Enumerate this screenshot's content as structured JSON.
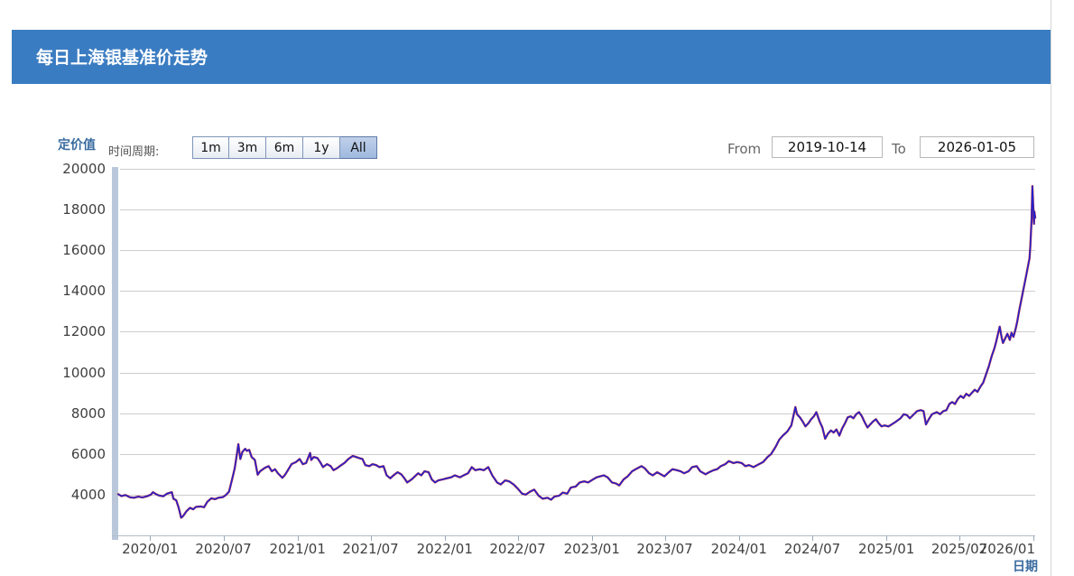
{
  "header": {
    "title": "每日上海银基准价走势"
  },
  "controls": {
    "period_label": "时间周期:",
    "periods": [
      "1m",
      "3m",
      "6m",
      "1y",
      "All"
    ],
    "selected_period": "All",
    "from_label": "From",
    "from_value": "2019-10-14",
    "to_label": "To",
    "to_value": "2026-01-05"
  },
  "colors": {
    "header_bg": "#3a7cc2",
    "accent_text": "#3a6b9f",
    "button_selected_bg": "#9fb9de",
    "grid": "#cdcdcd",
    "axis_bar": "#bac7da",
    "axis_line": "#b3bdc9",
    "tick_mark": "#9aaabb"
  },
  "chart_data": {
    "type": "line",
    "title": "每日上海银基准价走势",
    "xlabel": "日期",
    "ylabel": "定价值",
    "ylim": [
      2000,
      20000
    ],
    "yticks": [
      4000,
      6000,
      8000,
      10000,
      12000,
      14000,
      16000,
      18000,
      20000
    ],
    "x_range": [
      "2019-10-14",
      "2026-01-05"
    ],
    "xticks": [
      [
        "2020-01-01",
        "2020/01"
      ],
      [
        "2020-07-01",
        "2020/07"
      ],
      [
        "2021-01-01",
        "2021/01"
      ],
      [
        "2021-07-01",
        "2021/07"
      ],
      [
        "2022-01-01",
        "2022/01"
      ],
      [
        "2022-07-01",
        "2022/07"
      ],
      [
        "2023-01-01",
        "2023/01"
      ],
      [
        "2023-07-01",
        "2023/07"
      ],
      [
        "2024-01-01",
        "2024/01"
      ],
      [
        "2024-07-01",
        "2024/07"
      ],
      [
        "2025-01-01",
        "2025/01"
      ],
      [
        "2025-07-01",
        "2025/07"
      ],
      [
        "2026-01-01",
        "2026/01"
      ]
    ],
    "grid": true,
    "legend": "none",
    "lines": [
      {
        "name": "benchmark-price-outline",
        "color": "#d03030",
        "width": 2.4
      },
      {
        "name": "benchmark-price",
        "color": "#2323cc",
        "width": 1.6
      }
    ],
    "points": [
      [
        "2019-10-14",
        4020
      ],
      [
        "2019-10-22",
        3930
      ],
      [
        "2019-11-01",
        3980
      ],
      [
        "2019-11-12",
        3870
      ],
      [
        "2019-11-22",
        3850
      ],
      [
        "2019-12-03",
        3900
      ],
      [
        "2019-12-13",
        3860
      ],
      [
        "2019-12-24",
        3920
      ],
      [
        "2020-01-03",
        4000
      ],
      [
        "2020-01-08",
        4120
      ],
      [
        "2020-01-16",
        4020
      ],
      [
        "2020-01-23",
        3960
      ],
      [
        "2020-02-03",
        3920
      ],
      [
        "2020-02-12",
        4050
      ],
      [
        "2020-02-24",
        4120
      ],
      [
        "2020-02-28",
        3800
      ],
      [
        "2020-03-06",
        3720
      ],
      [
        "2020-03-12",
        3350
      ],
      [
        "2020-03-18",
        2870
      ],
      [
        "2020-03-23",
        2950
      ],
      [
        "2020-03-31",
        3180
      ],
      [
        "2020-04-09",
        3350
      ],
      [
        "2020-04-17",
        3280
      ],
      [
        "2020-04-24",
        3400
      ],
      [
        "2020-05-06",
        3420
      ],
      [
        "2020-05-14",
        3380
      ],
      [
        "2020-05-22",
        3650
      ],
      [
        "2020-06-01",
        3820
      ],
      [
        "2020-06-10",
        3780
      ],
      [
        "2020-06-19",
        3850
      ],
      [
        "2020-06-30",
        3880
      ],
      [
        "2020-07-08",
        4000
      ],
      [
        "2020-07-15",
        4150
      ],
      [
        "2020-07-22",
        4700
      ],
      [
        "2020-07-29",
        5300
      ],
      [
        "2020-08-05",
        6200
      ],
      [
        "2020-08-07",
        6480
      ],
      [
        "2020-08-12",
        5750
      ],
      [
        "2020-08-17",
        6100
      ],
      [
        "2020-08-24",
        6250
      ],
      [
        "2020-08-28",
        6150
      ],
      [
        "2020-09-03",
        6200
      ],
      [
        "2020-09-09",
        5850
      ],
      [
        "2020-09-17",
        5700
      ],
      [
        "2020-09-24",
        4980
      ],
      [
        "2020-09-30",
        5150
      ],
      [
        "2020-10-12",
        5320
      ],
      [
        "2020-10-21",
        5400
      ],
      [
        "2020-10-29",
        5150
      ],
      [
        "2020-11-06",
        5250
      ],
      [
        "2020-11-13",
        5050
      ],
      [
        "2020-11-24",
        4830
      ],
      [
        "2020-11-30",
        4950
      ],
      [
        "2020-12-08",
        5200
      ],
      [
        "2020-12-17",
        5500
      ],
      [
        "2020-12-28",
        5600
      ],
      [
        "2021-01-06",
        5750
      ],
      [
        "2021-01-14",
        5500
      ],
      [
        "2021-01-22",
        5550
      ],
      [
        "2021-02-01",
        6050
      ],
      [
        "2021-02-04",
        5700
      ],
      [
        "2021-02-10",
        5850
      ],
      [
        "2021-02-19",
        5800
      ],
      [
        "2021-02-26",
        5600
      ],
      [
        "2021-03-05",
        5350
      ],
      [
        "2021-03-15",
        5500
      ],
      [
        "2021-03-24",
        5400
      ],
      [
        "2021-03-31",
        5200
      ],
      [
        "2021-04-09",
        5300
      ],
      [
        "2021-04-19",
        5450
      ],
      [
        "2021-04-27",
        5550
      ],
      [
        "2021-05-07",
        5750
      ],
      [
        "2021-05-18",
        5900
      ],
      [
        "2021-05-26",
        5850
      ],
      [
        "2021-06-02",
        5800
      ],
      [
        "2021-06-11",
        5750
      ],
      [
        "2021-06-18",
        5450
      ],
      [
        "2021-06-28",
        5400
      ],
      [
        "2021-07-06",
        5500
      ],
      [
        "2021-07-15",
        5450
      ],
      [
        "2021-07-23",
        5350
      ],
      [
        "2021-08-02",
        5400
      ],
      [
        "2021-08-10",
        4950
      ],
      [
        "2021-08-19",
        4800
      ],
      [
        "2021-08-27",
        4950
      ],
      [
        "2021-09-06",
        5100
      ],
      [
        "2021-09-15",
        5000
      ],
      [
        "2021-09-23",
        4800
      ],
      [
        "2021-09-30",
        4600
      ],
      [
        "2021-10-11",
        4750
      ],
      [
        "2021-10-19",
        4900
      ],
      [
        "2021-10-27",
        5050
      ],
      [
        "2021-11-04",
        4950
      ],
      [
        "2021-11-12",
        5150
      ],
      [
        "2021-11-22",
        5100
      ],
      [
        "2021-11-30",
        4750
      ],
      [
        "2021-12-08",
        4600
      ],
      [
        "2021-12-16",
        4700
      ],
      [
        "2021-12-27",
        4750
      ],
      [
        "2022-01-06",
        4800
      ],
      [
        "2022-01-17",
        4850
      ],
      [
        "2022-01-26",
        4950
      ],
      [
        "2022-02-08",
        4850
      ],
      [
        "2022-02-17",
        4950
      ],
      [
        "2022-02-28",
        5050
      ],
      [
        "2022-03-09",
        5350
      ],
      [
        "2022-03-18",
        5200
      ],
      [
        "2022-03-29",
        5250
      ],
      [
        "2022-04-08",
        5200
      ],
      [
        "2022-04-19",
        5350
      ],
      [
        "2022-04-29",
        4950
      ],
      [
        "2022-05-11",
        4600
      ],
      [
        "2022-05-20",
        4500
      ],
      [
        "2022-05-31",
        4700
      ],
      [
        "2022-06-10",
        4650
      ],
      [
        "2022-06-21",
        4500
      ],
      [
        "2022-07-01",
        4300
      ],
      [
        "2022-07-12",
        4050
      ],
      [
        "2022-07-21",
        4000
      ],
      [
        "2022-08-01",
        4150
      ],
      [
        "2022-08-11",
        4250
      ],
      [
        "2022-08-22",
        3950
      ],
      [
        "2022-09-01",
        3800
      ],
      [
        "2022-09-13",
        3850
      ],
      [
        "2022-09-22",
        3750
      ],
      [
        "2022-09-30",
        3900
      ],
      [
        "2022-10-12",
        3950
      ],
      [
        "2022-10-21",
        4100
      ],
      [
        "2022-11-01",
        4050
      ],
      [
        "2022-11-10",
        4350
      ],
      [
        "2022-11-22",
        4400
      ],
      [
        "2022-12-02",
        4600
      ],
      [
        "2022-12-13",
        4650
      ],
      [
        "2022-12-23",
        4600
      ],
      [
        "2023-01-04",
        4750
      ],
      [
        "2023-01-13",
        4850
      ],
      [
        "2023-01-31",
        4950
      ],
      [
        "2023-02-09",
        4850
      ],
      [
        "2023-02-20",
        4600
      ],
      [
        "2023-03-02",
        4550
      ],
      [
        "2023-03-10",
        4450
      ],
      [
        "2023-03-21",
        4750
      ],
      [
        "2023-03-31",
        4900
      ],
      [
        "2023-04-11",
        5150
      ],
      [
        "2023-04-20",
        5250
      ],
      [
        "2023-05-04",
        5400
      ],
      [
        "2023-05-12",
        5300
      ],
      [
        "2023-05-23",
        5050
      ],
      [
        "2023-06-01",
        4950
      ],
      [
        "2023-06-12",
        5100
      ],
      [
        "2023-06-21",
        5000
      ],
      [
        "2023-06-30",
        4900
      ],
      [
        "2023-07-11",
        5100
      ],
      [
        "2023-07-20",
        5250
      ],
      [
        "2023-07-31",
        5200
      ],
      [
        "2023-08-09",
        5150
      ],
      [
        "2023-08-18",
        5050
      ],
      [
        "2023-08-29",
        5150
      ],
      [
        "2023-09-07",
        5350
      ],
      [
        "2023-09-18",
        5400
      ],
      [
        "2023-09-27",
        5150
      ],
      [
        "2023-10-10",
        5000
      ],
      [
        "2023-10-19",
        5100
      ],
      [
        "2023-10-30",
        5200
      ],
      [
        "2023-11-08",
        5250
      ],
      [
        "2023-11-17",
        5400
      ],
      [
        "2023-11-28",
        5500
      ],
      [
        "2023-12-07",
        5650
      ],
      [
        "2023-12-18",
        5550
      ],
      [
        "2023-12-28",
        5600
      ],
      [
        "2024-01-08",
        5550
      ],
      [
        "2024-01-17",
        5400
      ],
      [
        "2024-01-26",
        5450
      ],
      [
        "2024-02-06",
        5350
      ],
      [
        "2024-02-20",
        5500
      ],
      [
        "2024-03-01",
        5600
      ],
      [
        "2024-03-12",
        5850
      ],
      [
        "2024-03-21",
        6000
      ],
      [
        "2024-04-01",
        6350
      ],
      [
        "2024-04-10",
        6700
      ],
      [
        "2024-04-19",
        6900
      ],
      [
        "2024-04-30",
        7100
      ],
      [
        "2024-05-10",
        7400
      ],
      [
        "2024-05-20",
        8300
      ],
      [
        "2024-05-24",
        7950
      ],
      [
        "2024-05-31",
        7800
      ],
      [
        "2024-06-07",
        7600
      ],
      [
        "2024-06-14",
        7350
      ],
      [
        "2024-06-21",
        7500
      ],
      [
        "2024-06-28",
        7700
      ],
      [
        "2024-07-05",
        7850
      ],
      [
        "2024-07-11",
        8050
      ],
      [
        "2024-07-19",
        7600
      ],
      [
        "2024-07-26",
        7300
      ],
      [
        "2024-08-02",
        6750
      ],
      [
        "2024-08-09",
        7000
      ],
      [
        "2024-08-16",
        7150
      ],
      [
        "2024-08-23",
        7050
      ],
      [
        "2024-08-30",
        7200
      ],
      [
        "2024-09-06",
        6900
      ],
      [
        "2024-09-13",
        7250
      ],
      [
        "2024-09-20",
        7500
      ],
      [
        "2024-09-27",
        7800
      ],
      [
        "2024-10-04",
        7850
      ],
      [
        "2024-10-11",
        7750
      ],
      [
        "2024-10-18",
        7950
      ],
      [
        "2024-10-25",
        8050
      ],
      [
        "2024-11-01",
        7850
      ],
      [
        "2024-11-08",
        7550
      ],
      [
        "2024-11-15",
        7300
      ],
      [
        "2024-11-22",
        7450
      ],
      [
        "2024-11-29",
        7600
      ],
      [
        "2024-12-06",
        7700
      ],
      [
        "2024-12-13",
        7500
      ],
      [
        "2024-12-20",
        7350
      ],
      [
        "2024-12-27",
        7400
      ],
      [
        "2025-01-06",
        7350
      ],
      [
        "2025-01-14",
        7450
      ],
      [
        "2025-01-22",
        7550
      ],
      [
        "2025-02-05",
        7750
      ],
      [
        "2025-02-13",
        7950
      ],
      [
        "2025-02-21",
        7900
      ],
      [
        "2025-02-28",
        7750
      ],
      [
        "2025-03-10",
        7950
      ],
      [
        "2025-03-18",
        8100
      ],
      [
        "2025-03-27",
        8150
      ],
      [
        "2025-04-03",
        8100
      ],
      [
        "2025-04-09",
        7450
      ],
      [
        "2025-04-16",
        7700
      ],
      [
        "2025-04-24",
        7950
      ],
      [
        "2025-05-06",
        8050
      ],
      [
        "2025-05-14",
        7950
      ],
      [
        "2025-05-22",
        8100
      ],
      [
        "2025-05-30",
        8150
      ],
      [
        "2025-06-06",
        8450
      ],
      [
        "2025-06-13",
        8550
      ],
      [
        "2025-06-20",
        8450
      ],
      [
        "2025-06-27",
        8700
      ],
      [
        "2025-07-04",
        8850
      ],
      [
        "2025-07-11",
        8750
      ],
      [
        "2025-07-18",
        8950
      ],
      [
        "2025-07-25",
        8850
      ],
      [
        "2025-08-01",
        9000
      ],
      [
        "2025-08-08",
        9150
      ],
      [
        "2025-08-15",
        9050
      ],
      [
        "2025-08-22",
        9300
      ],
      [
        "2025-08-29",
        9500
      ],
      [
        "2025-09-05",
        9900
      ],
      [
        "2025-09-12",
        10300
      ],
      [
        "2025-09-19",
        10800
      ],
      [
        "2025-09-26",
        11200
      ],
      [
        "2025-09-30",
        11500
      ],
      [
        "2025-10-09",
        12250
      ],
      [
        "2025-10-14",
        11700
      ],
      [
        "2025-10-17",
        11450
      ],
      [
        "2025-10-22",
        11650
      ],
      [
        "2025-10-28",
        11900
      ],
      [
        "2025-11-03",
        11600
      ],
      [
        "2025-11-07",
        11950
      ],
      [
        "2025-11-12",
        11750
      ],
      [
        "2025-11-17",
        12100
      ],
      [
        "2025-11-21",
        12450
      ],
      [
        "2025-11-26",
        13000
      ],
      [
        "2025-12-02",
        13600
      ],
      [
        "2025-12-08",
        14200
      ],
      [
        "2025-12-12",
        14600
      ],
      [
        "2025-12-17",
        15100
      ],
      [
        "2025-12-22",
        15600
      ],
      [
        "2025-12-24",
        16200
      ],
      [
        "2025-12-27",
        17500
      ],
      [
        "2025-12-29",
        19150
      ],
      [
        "2025-12-31",
        18200
      ],
      [
        "2026-01-02",
        17300
      ],
      [
        "2026-01-03",
        17900
      ],
      [
        "2026-01-05",
        17600
      ]
    ]
  }
}
